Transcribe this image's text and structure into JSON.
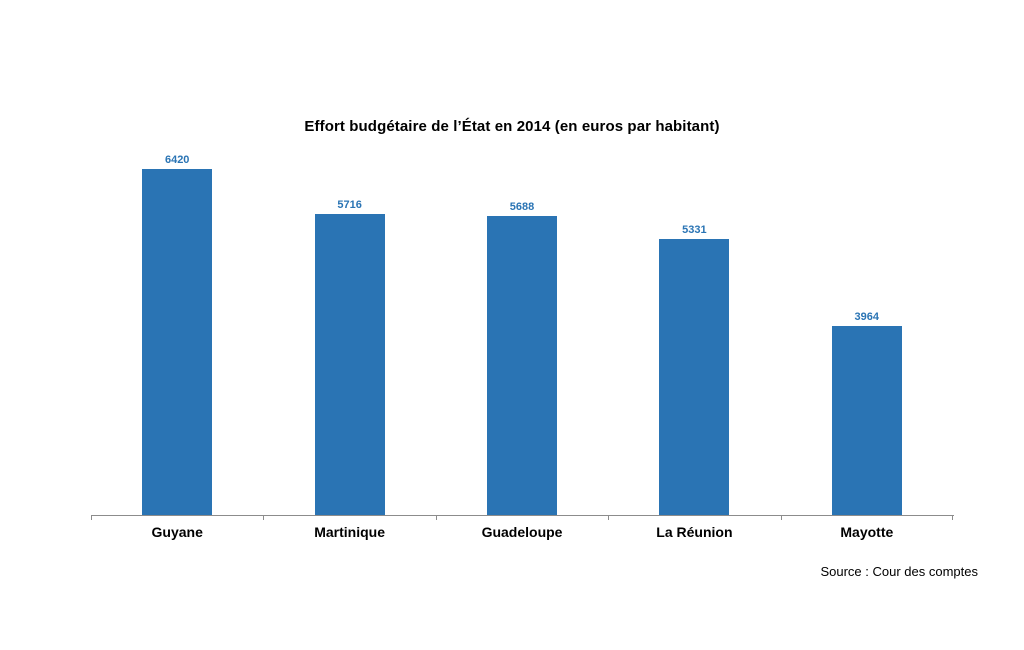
{
  "chart_data": {
    "type": "bar",
    "title": "Effort budgétaire de l’État en 2014 (en euros par habitant)",
    "categories": [
      "Guyane",
      "Martinique",
      "Guadeloupe",
      "La Réunion",
      "Mayotte"
    ],
    "values": [
      6420,
      5716,
      5688,
      5331,
      3964
    ],
    "value_labels": [
      "6420",
      "5716",
      "5688",
      "5331",
      "3964"
    ],
    "xlabel": "",
    "ylabel": "",
    "ylim": [
      1000,
      6500
    ],
    "y_axis_visible": false,
    "grid": false,
    "legend": null,
    "colors": {
      "bar": "#2A74B4",
      "value_label": "#2A74B4",
      "axis_line": "#8C8C8C",
      "title": "#000000",
      "category_label": "#000000"
    },
    "source": "Source : Cour des comptes"
  }
}
